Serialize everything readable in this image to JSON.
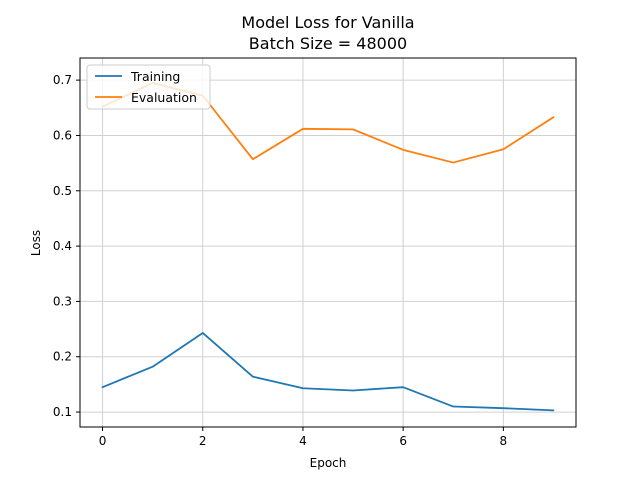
{
  "chart_data": {
    "type": "line",
    "title": "Model Loss for Vanilla",
    "subtitle": "Batch Size = 48000",
    "xlabel": "Epoch",
    "ylabel": "Loss",
    "x": [
      0,
      1,
      2,
      3,
      4,
      5,
      6,
      7,
      8,
      9
    ],
    "xlim": [
      -0.45,
      9.45
    ],
    "ylim": [
      0.073,
      0.74
    ],
    "xticks": [
      0,
      2,
      4,
      6,
      8
    ],
    "yticks": [
      0.1,
      0.2,
      0.3,
      0.4,
      0.5,
      0.6,
      0.7
    ],
    "xtick_labels": [
      "0",
      "2",
      "4",
      "6",
      "8"
    ],
    "ytick_labels": [
      "0.1",
      "0.2",
      "0.3",
      "0.4",
      "0.5",
      "0.6",
      "0.7"
    ],
    "grid": true,
    "legend_position": "top-left",
    "series": [
      {
        "name": "Training",
        "color": "#1f77b4",
        "values": [
          0.145,
          0.182,
          0.243,
          0.164,
          0.143,
          0.139,
          0.145,
          0.11,
          0.107,
          0.103
        ]
      },
      {
        "name": "Evaluation",
        "color": "#ff7f0e",
        "values": [
          0.652,
          0.695,
          0.672,
          0.557,
          0.612,
          0.611,
          0.574,
          0.551,
          0.575,
          0.633
        ]
      }
    ]
  }
}
